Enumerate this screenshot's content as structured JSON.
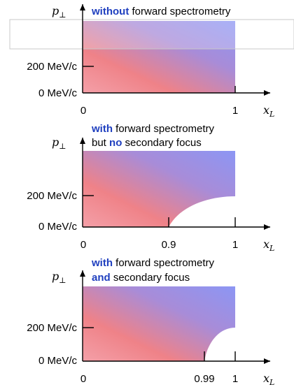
{
  "colors": {
    "emphasis": "#1f3fbf",
    "gradient_warm": "#f0808a",
    "gradient_cool": "#8c96f4",
    "axis": "#000000",
    "overlay_box_border": "#c8c8c8"
  },
  "panels": [
    {
      "y_axis_symbol": "p",
      "y_axis_subscript": "⊥",
      "title_line1": {
        "emph": "without",
        "rest": " forward spectrometry"
      },
      "title_line2": null,
      "y_ticks": [
        "200 MeV/c",
        "0 MeV/c"
      ],
      "x_ticks": [
        "0",
        "1"
      ],
      "x_axis_symbol": "x",
      "x_axis_subscript": "L",
      "excluded_region": "none"
    },
    {
      "y_axis_symbol": "p",
      "y_axis_subscript": "⊥",
      "title_line1": {
        "emph": "with",
        "rest": " forward spectrometry"
      },
      "title_line2": {
        "pre": "but ",
        "emph": "no",
        "rest": " secondary focus"
      },
      "y_ticks": [
        "200 MeV/c",
        "0 MeV/c"
      ],
      "x_ticks": [
        "0",
        "0.9",
        "1"
      ],
      "x_axis_symbol": "x",
      "x_axis_subscript": "L",
      "excluded_region": "large"
    },
    {
      "y_axis_symbol": "p",
      "y_axis_subscript": "⊥",
      "title_line1": {
        "emph": "with",
        "rest": " forward spectrometry"
      },
      "title_line2": {
        "pre": "",
        "emph": "and",
        "rest": " secondary focus"
      },
      "y_ticks": [
        "200 MeV/c",
        "0 MeV/c"
      ],
      "x_ticks": [
        "0",
        "0.99",
        "1"
      ],
      "x_axis_symbol": "x",
      "x_axis_subscript": "L",
      "excluded_region": "small"
    }
  ]
}
